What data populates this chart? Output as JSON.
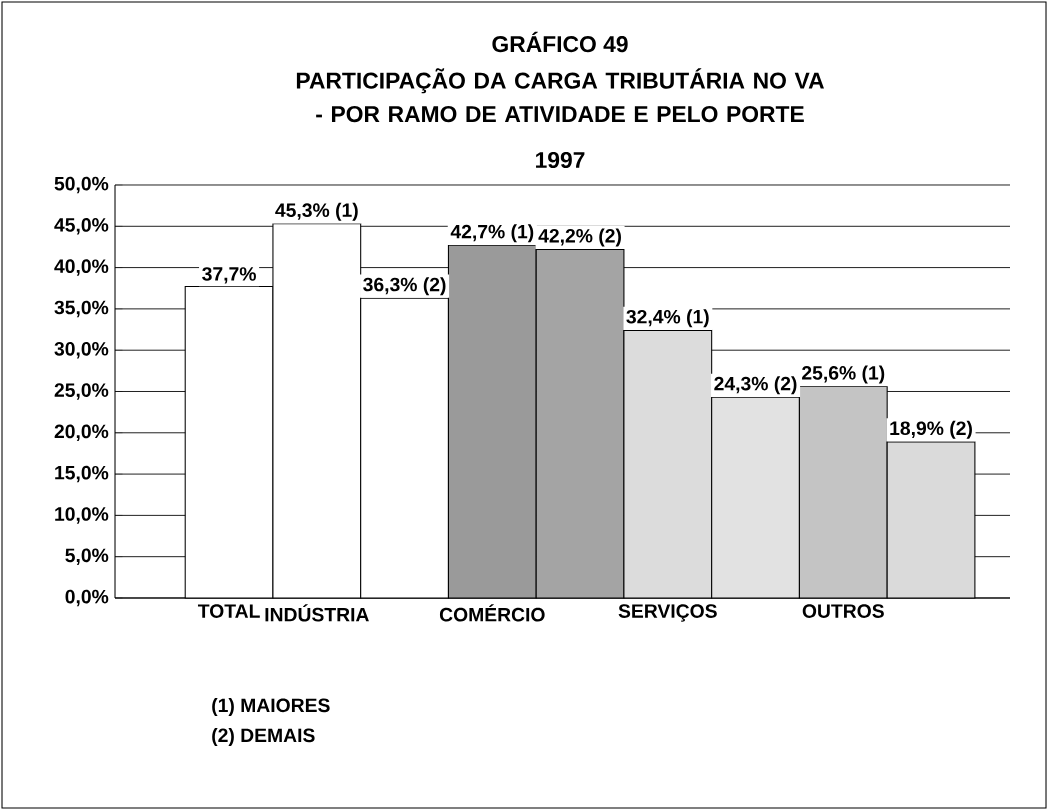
{
  "chart_data": {
    "type": "bar",
    "title": "PARTICIPAÇÃO DA CARGA TRIBUTÁRIA NO VA - POR RAMO DE ATIVIDADE E PELO PORTE",
    "subtitle": "1997",
    "categories": [
      "TOTAL",
      "INDÚSTRIA",
      null,
      "COMÉRCIO",
      null,
      "SERVIÇOS",
      null,
      "OUTROS",
      null
    ],
    "values": [
      37.7,
      45.3,
      36.3,
      42.7,
      42.2,
      32.4,
      24.3,
      25.6,
      18.9
    ],
    "value_labels": [
      "37,7%",
      "45,3% (1)",
      "36,3% (2)",
      "42,7% (1)",
      "42,2% (2)",
      "32,4% (1)",
      "24,3% (2)",
      "25,6% (1)",
      "18,9% (2)"
    ],
    "colors": [
      "#ffffff",
      "#ffffff",
      "#ffffff",
      "#9a9a9a",
      "#a4a4a4",
      "#dcdcdc",
      "#e2e2e2",
      "#c4c4c4",
      "#dadada"
    ],
    "ylim": [
      0,
      50
    ],
    "yticks": [
      {
        "value": 0,
        "label": "0,0%"
      },
      {
        "value": 5,
        "label": "5,0%"
      },
      {
        "value": 10,
        "label": "10,0%"
      },
      {
        "value": 15,
        "label": "15,0%"
      },
      {
        "value": 20,
        "label": "20,0%"
      },
      {
        "value": 25,
        "label": "25,0%"
      },
      {
        "value": 30,
        "label": "30,0%"
      },
      {
        "value": 35,
        "label": "35,0%"
      },
      {
        "value": 40,
        "label": "40,0%"
      },
      {
        "value": 45,
        "label": "45,0%"
      },
      {
        "value": 50,
        "label": "50,0%"
      }
    ],
    "grid": "y",
    "annotations": [
      "GRÁFICO 49",
      "(1) MAIORES",
      "(2) DEMAIS"
    ]
  }
}
